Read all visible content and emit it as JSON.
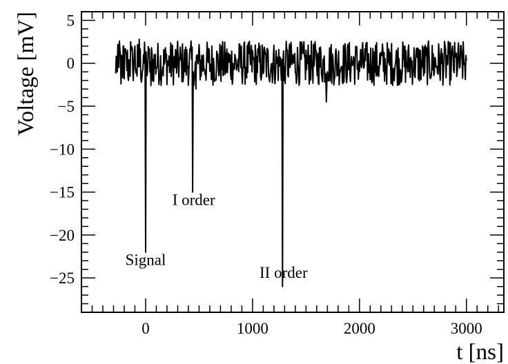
{
  "chart_data": {
    "type": "line",
    "title": "",
    "xlabel": "t [ns]",
    "ylabel": "Voltage [mV]",
    "xlim": [
      -600,
      3350
    ],
    "ylim": [
      -29,
      6
    ],
    "x_ticks": [
      0,
      1000,
      2000,
      3000
    ],
    "x_tick_labels": [
      "0",
      "1000",
      "2000",
      "3000"
    ],
    "y_ticks": [
      5,
      0,
      -5,
      -10,
      -15,
      -20,
      -25
    ],
    "y_tick_labels": [
      "5",
      "0",
      "−5",
      "−10",
      "−15",
      "−20",
      "−25"
    ],
    "grid": false,
    "legend": "none",
    "line_color": "#000000",
    "series": [
      {
        "x_start": -280,
        "x_end": 3000,
        "x_step": 5,
        "noise_amplitude": 2.6,
        "baseline": 0,
        "points": [
          [
            -280,
            -1.2
          ],
          [
            -270,
            0.8
          ],
          [
            -260,
            2.2
          ],
          [
            -250,
            -0.5
          ],
          [
            -240,
            1.5
          ],
          [
            -230,
            -2.4
          ],
          [
            -220,
            0.6
          ],
          [
            -210,
            2.0
          ],
          [
            -200,
            -1.8
          ],
          [
            -180,
            1.2
          ],
          [
            -160,
            -2.0
          ],
          [
            -140,
            2.5
          ],
          [
            -120,
            -0.8
          ],
          [
            -100,
            2.0
          ],
          [
            -80,
            -1.5
          ],
          [
            -60,
            2.8
          ],
          [
            -40,
            -2.2
          ],
          [
            -20,
            1.0
          ],
          [
            0,
            -22.0
          ],
          [
            10,
            -1.0
          ],
          [
            30,
            1.5
          ],
          [
            50,
            -2.6
          ],
          [
            440,
            -15.0
          ],
          [
            455,
            -1.5
          ],
          [
            470,
            -3.0
          ],
          [
            1280,
            -26.0
          ],
          [
            1295,
            -2.0
          ],
          [
            1310,
            0.5
          ],
          [
            1690,
            -4.5
          ],
          [
            1700,
            -1.0
          ],
          [
            3000,
            0.3
          ]
        ]
      }
    ],
    "annotations": [
      {
        "text": "Signal",
        "x": 0,
        "y": -23.5
      },
      {
        "text": "I order",
        "x": 450,
        "y": -16.5
      },
      {
        "text": "II order",
        "x": 1290,
        "y": -25.0
      }
    ]
  }
}
